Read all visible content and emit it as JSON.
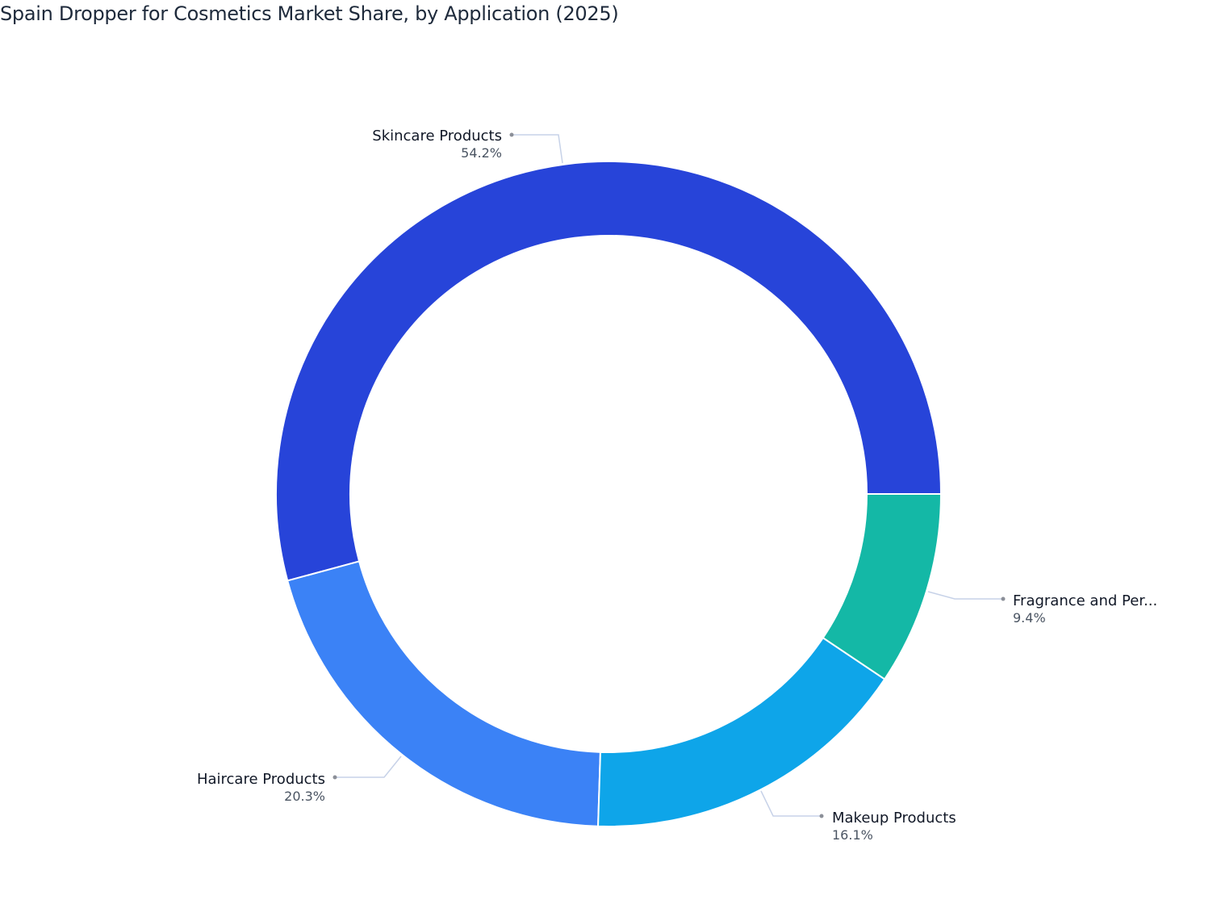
{
  "chart_data": {
    "type": "pie",
    "variant": "donut",
    "title": "Spain Dropper for Cosmetics Market Share, by Application (2025)",
    "categories": [
      "Skincare Products",
      "Haircare Products",
      "Makeup Products",
      "Fragrance and Per..."
    ],
    "values": [
      54.2,
      20.3,
      16.1,
      9.4
    ],
    "value_labels": [
      "54.2%",
      "20.3%",
      "16.1%",
      "9.4%"
    ],
    "colors": [
      "#2744D9",
      "#3B82F6",
      "#0EA5E9",
      "#14B8A6"
    ],
    "legend": "none",
    "label_style": "outside with leader lines"
  }
}
